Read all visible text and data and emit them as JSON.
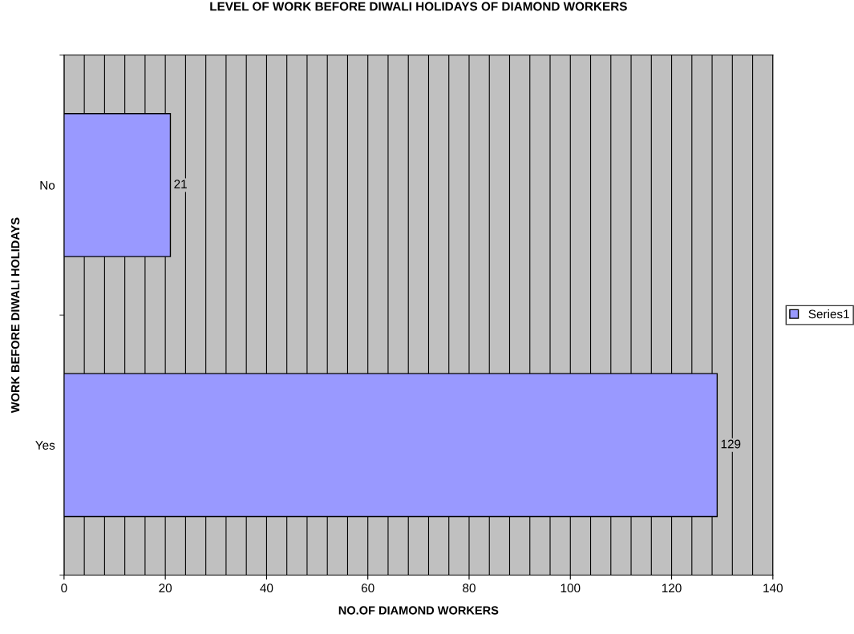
{
  "chart_data": {
    "type": "bar",
    "orientation": "horizontal",
    "title": "LEVEL OF WORK BEFORE DIWALI HOLIDAYS OF DIAMOND WORKERS",
    "xlabel": "NO.OF DIAMOND WORKERS",
    "ylabel": "WORK BEFORE DIWALI HOLIDAYS",
    "categories": [
      "No",
      "Yes"
    ],
    "series": [
      {
        "name": "Series1",
        "color": "#9999ff",
        "values": [
          21,
          129
        ]
      }
    ],
    "xlim": [
      0,
      140
    ],
    "xticks": [
      0,
      {
        "value": 4,
        "label": null
      },
      {
        "value": 8,
        "label": null
      },
      {
        "value": 12,
        "label": null
      },
      {
        "value": 16,
        "label": null
      },
      20,
      {
        "value": 24,
        "label": null
      },
      {
        "value": 28,
        "label": null
      },
      {
        "value": 32,
        "label": null
      },
      {
        "value": 36,
        "label": null
      },
      40,
      {
        "value": 44,
        "label": null
      },
      {
        "value": 48,
        "label": null
      },
      {
        "value": 52,
        "label": null
      },
      {
        "value": 56,
        "label": null
      },
      60,
      {
        "value": 64,
        "label": null
      },
      {
        "value": 68,
        "label": null
      },
      {
        "value": 72,
        "label": null
      },
      {
        "value": 76,
        "label": null
      },
      80,
      {
        "value": 84,
        "label": null
      },
      {
        "value": 88,
        "label": null
      },
      {
        "value": 92,
        "label": null
      },
      {
        "value": 96,
        "label": null
      },
      100,
      {
        "value": 104,
        "label": null
      },
      {
        "value": 108,
        "label": null
      },
      {
        "value": 112,
        "label": null
      },
      {
        "value": 116,
        "label": null
      },
      120,
      {
        "value": 124,
        "label": null
      },
      {
        "value": 128,
        "label": null
      },
      {
        "value": 132,
        "label": null
      },
      {
        "value": 136,
        "label": null
      },
      140
    ],
    "grid": "x",
    "legend": "right",
    "data_labels": true
  }
}
